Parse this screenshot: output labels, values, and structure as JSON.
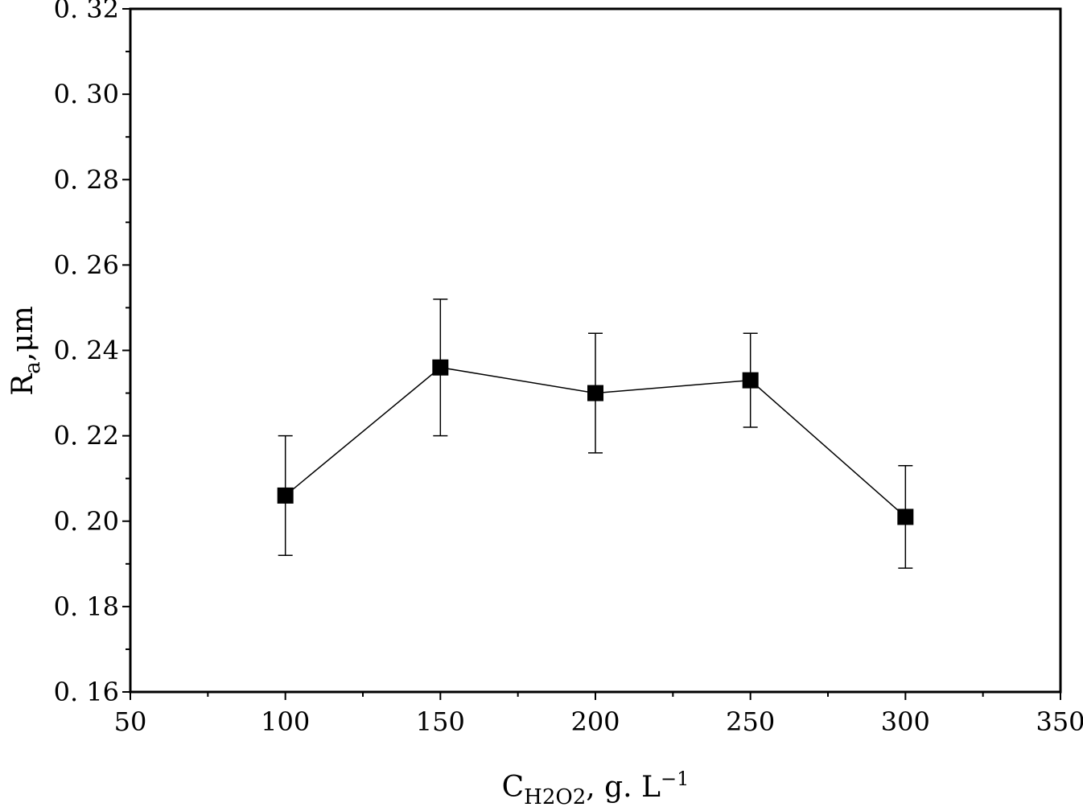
{
  "chart_data": {
    "type": "scatter",
    "x_tick_labels": [
      "50",
      "100",
      "150",
      "200",
      "250",
      "300",
      "350"
    ],
    "y_tick_labels": [
      "0. 16",
      "0. 18",
      "0. 20",
      "0. 22",
      "0. 24",
      "0. 26",
      "0. 28",
      "0. 30",
      "0. 32"
    ],
    "xlabel": {
      "main": "C",
      "sub": "H2O2",
      "rest": ", g. L",
      "sup": "−1"
    },
    "ylabel": {
      "main": "R",
      "sub": "a",
      "rest": ",μm"
    },
    "xlim": [
      50,
      350
    ],
    "ylim": [
      0.16,
      0.32
    ],
    "x_major_ticks": [
      50,
      100,
      150,
      200,
      250,
      300,
      350
    ],
    "x_minor_step": 25,
    "y_major_ticks": [
      0.16,
      0.18,
      0.2,
      0.22,
      0.24,
      0.26,
      0.28,
      0.3,
      0.32
    ],
    "y_minor_step": 0.01,
    "grid": false,
    "connected": true,
    "marker": "square",
    "color": "#000000",
    "series": [
      {
        "x": [
          100,
          150,
          200,
          250,
          300
        ],
        "y": [
          0.206,
          0.236,
          0.23,
          0.233,
          0.201
        ],
        "error_low": [
          0.192,
          0.22,
          0.216,
          0.222,
          0.189
        ],
        "error_high": [
          0.22,
          0.252,
          0.244,
          0.244,
          0.213
        ]
      }
    ]
  }
}
